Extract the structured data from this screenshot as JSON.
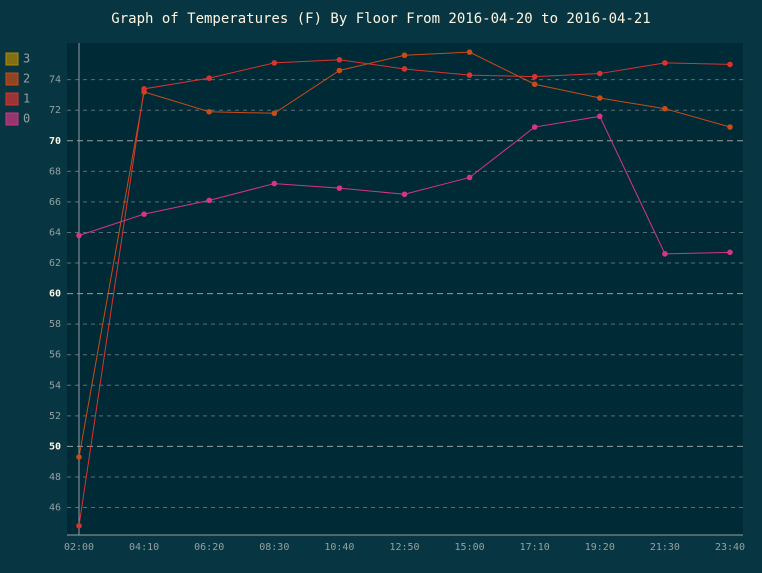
{
  "chart_data": {
    "type": "line",
    "title": "Graph of Temperatures (F) By Floor From 2016-04-20 to 2016-04-21",
    "categories": [
      "02:00",
      "04:10",
      "06:20",
      "08:30",
      "10:40",
      "12:50",
      "15:00",
      "17:10",
      "19:20",
      "21:30",
      "23:40"
    ],
    "series": [
      {
        "name": "3",
        "color": "#b58900",
        "values": [
          null,
          null,
          null,
          null,
          null,
          null,
          null,
          null,
          null,
          null,
          null
        ]
      },
      {
        "name": "2",
        "color": "#cb4b16",
        "values": [
          49.3,
          73.2,
          71.9,
          71.8,
          74.6,
          75.6,
          75.8,
          73.7,
          72.8,
          72.1,
          70.9
        ]
      },
      {
        "name": "1",
        "color": "#dc322f",
        "values": [
          44.8,
          73.4,
          74.1,
          75.1,
          75.3,
          74.7,
          74.3,
          74.2,
          74.4,
          75.1,
          75.0
        ]
      },
      {
        "name": "0",
        "color": "#d33682",
        "values": [
          63.8,
          65.2,
          66.1,
          67.2,
          66.9,
          66.5,
          67.6,
          70.9,
          71.6,
          62.6,
          62.7
        ]
      }
    ],
    "ylim": [
      44.2,
      76.4
    ],
    "yticks": [
      46,
      48,
      50,
      52,
      54,
      56,
      58,
      60,
      62,
      64,
      66,
      68,
      70,
      72,
      74
    ],
    "major_yticks": [
      50,
      60,
      70
    ],
    "grid": true
  }
}
